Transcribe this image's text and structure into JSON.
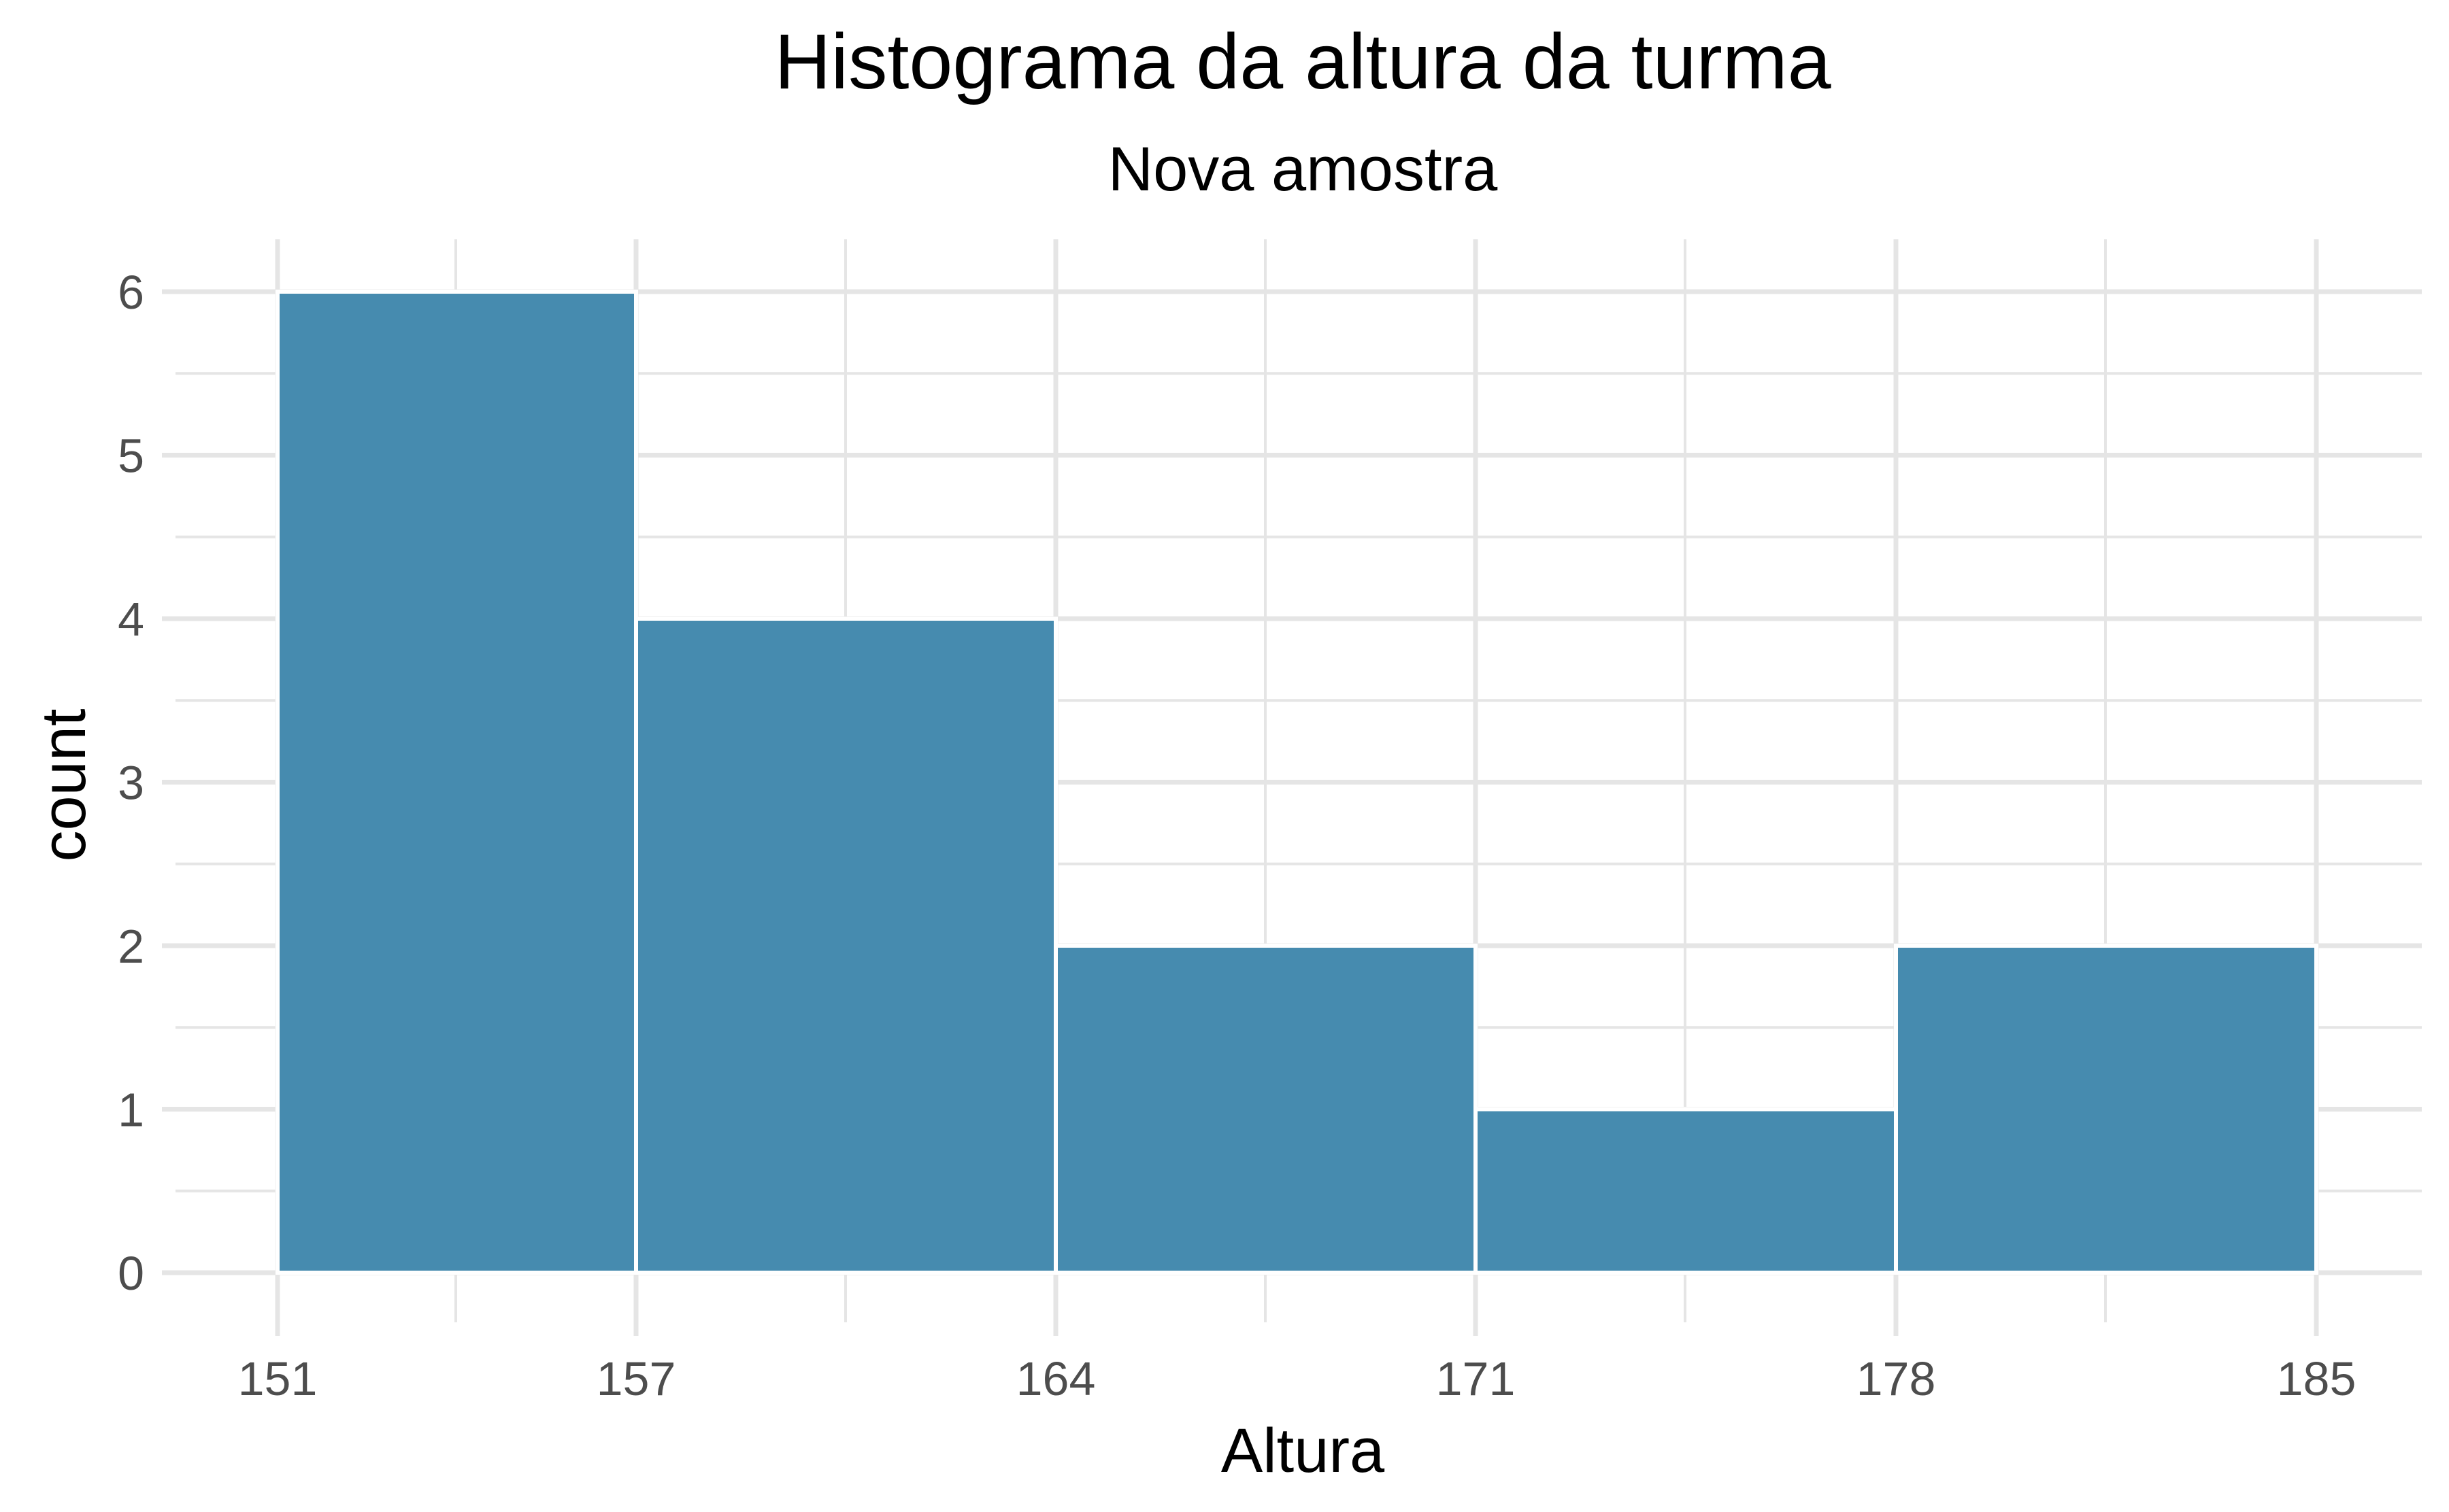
{
  "chart_data": {
    "type": "bar",
    "title": "Histograma da altura da turma",
    "subtitle": "Nova amostra",
    "xlabel": "Altura",
    "ylabel": "count",
    "bins": [
      {
        "start": 151,
        "end": 157,
        "count": 6
      },
      {
        "start": 157,
        "end": 164,
        "count": 4
      },
      {
        "start": 164,
        "end": 171,
        "count": 2
      },
      {
        "start": 171,
        "end": 178,
        "count": 1
      },
      {
        "start": 178,
        "end": 185,
        "count": 2
      }
    ],
    "x_ticks": [
      "151",
      "157",
      "164",
      "171",
      "178",
      "185"
    ],
    "y_ticks": [
      "0",
      "1",
      "2",
      "3",
      "4",
      "5",
      "6"
    ],
    "ylim": [
      0,
      6
    ],
    "grid": true,
    "legend": "none",
    "bar_color": "#468BAF"
  }
}
